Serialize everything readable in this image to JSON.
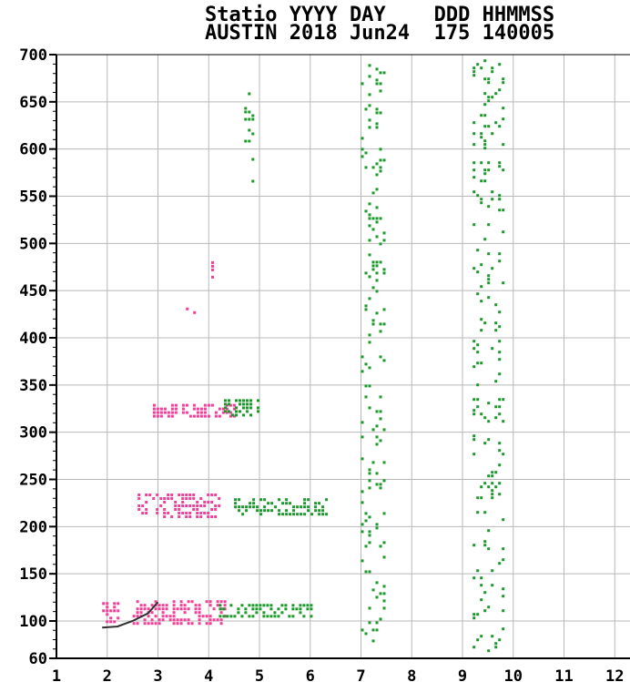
{
  "header": {
    "line1": "Statio YYYY DAY    DDD HHMMSS",
    "line2": "AUSTIN 2018 Jun24  175 140005"
  },
  "colors": {
    "background": "#ffffff",
    "grid": "#b8b8b8",
    "pink": "#f0409a",
    "green": "#1a9a2a",
    "trace": "#303030"
  },
  "chart_data": {
    "type": "scatter",
    "title": "",
    "xlabel": "",
    "ylabel": "",
    "xlim": [
      1,
      12.3
    ],
    "ylim": [
      60,
      700
    ],
    "xticks": [
      "1",
      "2",
      "3",
      "4",
      "5",
      "6",
      "7",
      "8",
      "9",
      "10",
      "11",
      "12"
    ],
    "yticks": [
      "60",
      "100",
      "150",
      "200",
      "250",
      "300",
      "350",
      "400",
      "450",
      "500",
      "550",
      "600",
      "650",
      "700"
    ],
    "grid": true,
    "legend": "none",
    "series": [
      {
        "color": "pink",
        "clusters": [
          {
            "x": [
              2.5,
              4.3
            ],
            "y": [
              98,
              122
            ]
          },
          {
            "x": [
              2.6,
              4.2
            ],
            "y": [
              210,
              235
            ]
          },
          {
            "x": [
              2.9,
              4.5
            ],
            "y": [
              315,
              330
            ]
          },
          {
            "x": [
              3.55,
              3.8
            ],
            "y": [
              425,
              432
            ]
          },
          {
            "x": [
              4.05,
              4.1
            ],
            "y": [
              465,
              485
            ]
          },
          {
            "x": [
              1.9,
              2.2
            ],
            "y": [
              100,
              120
            ]
          }
        ]
      },
      {
        "color": "green",
        "clusters": [
          {
            "x": [
              4.2,
              6.0
            ],
            "y": [
              104,
              118
            ]
          },
          {
            "x": [
              4.5,
              6.3
            ],
            "y": [
              212,
              230
            ]
          },
          {
            "x": [
              4.3,
              5.0
            ],
            "y": [
              318,
              335
            ]
          },
          {
            "x": [
              4.7,
              4.9
            ],
            "y": [
              545,
              660
            ]
          },
          {
            "x": [
              7.0,
              7.5
            ],
            "y": [
              65,
              690
            ]
          },
          {
            "x": [
              9.2,
              9.8
            ],
            "y": [
              65,
              695
            ]
          }
        ]
      }
    ],
    "trace": {
      "x": [
        1.9,
        2.2,
        2.5,
        2.8,
        3.0
      ],
      "y": [
        93,
        94,
        100,
        108,
        120
      ]
    }
  }
}
